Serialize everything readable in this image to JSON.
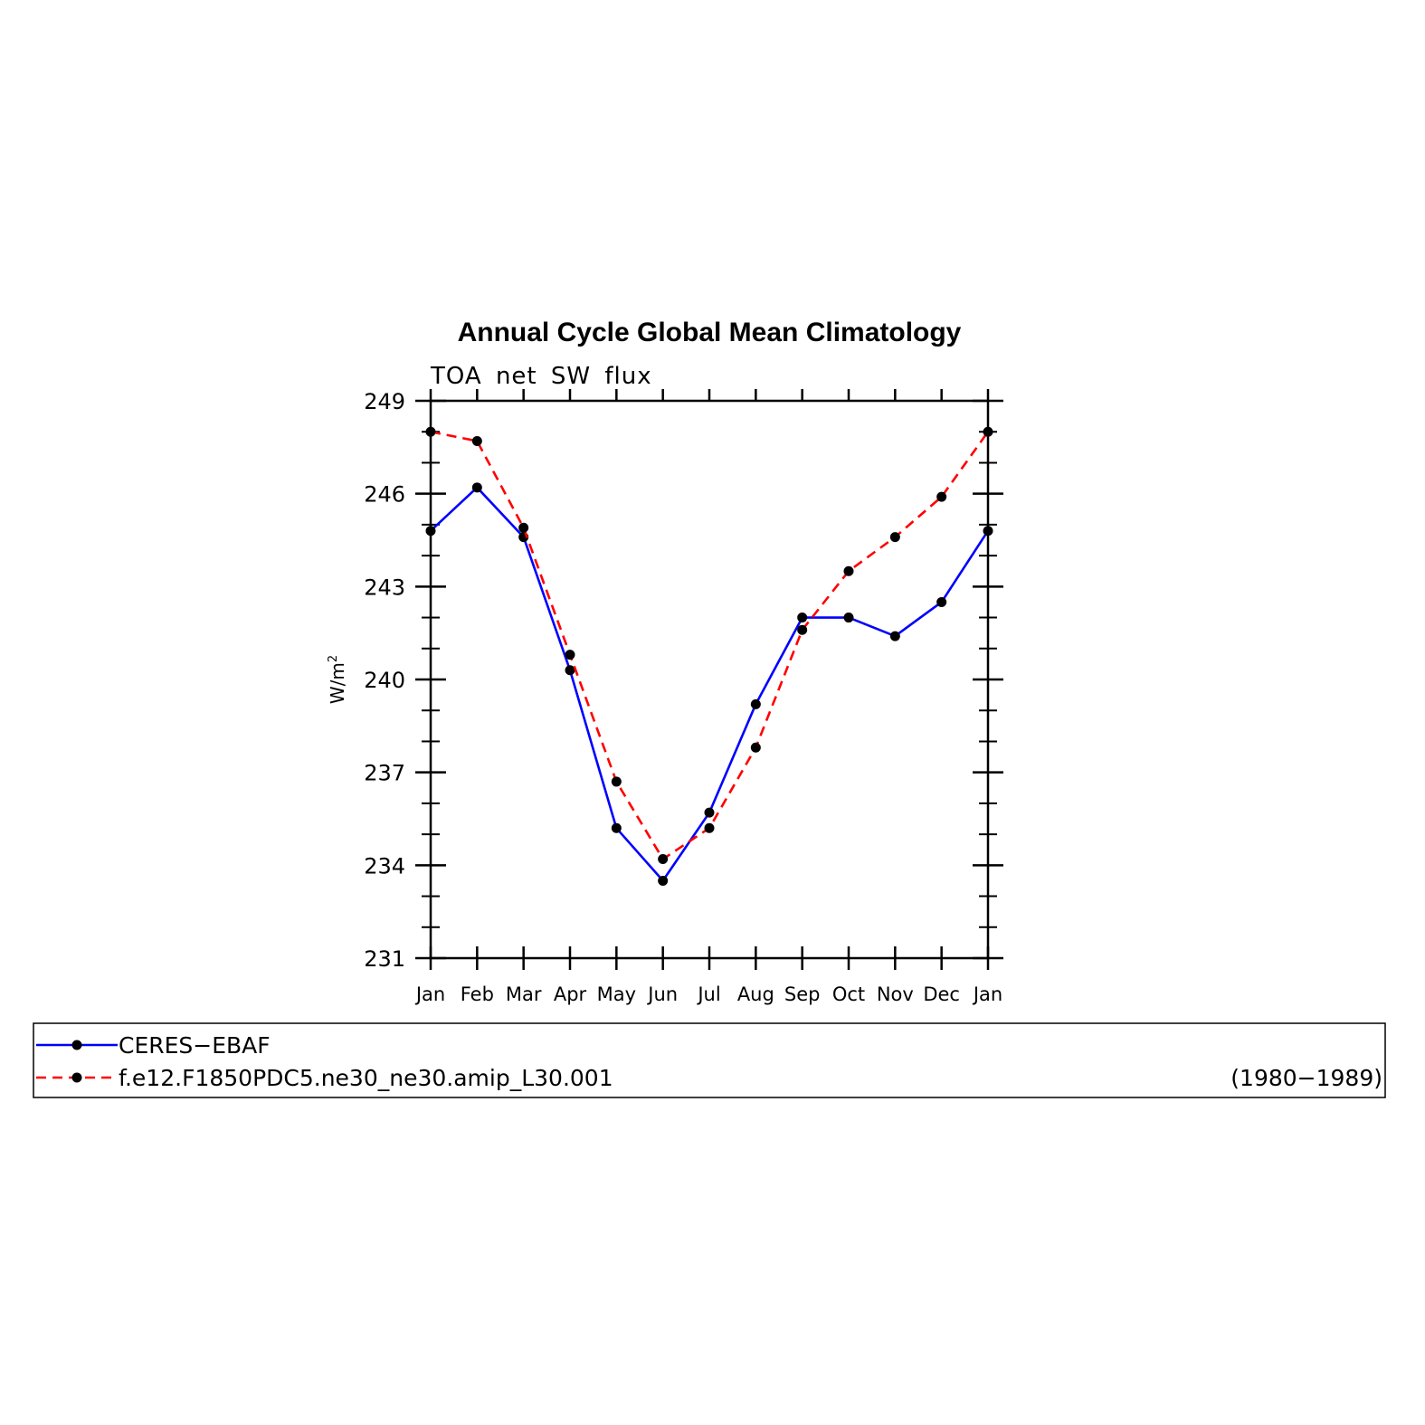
{
  "chart_data": {
    "type": "line",
    "title": "Annual Cycle Global Mean Climatology",
    "subtitle": "TOA net SW flux",
    "ylabel_main": "W/m",
    "ylabel_sup": "2",
    "xlabel": "",
    "categories": [
      "Jan",
      "Feb",
      "Mar",
      "Apr",
      "May",
      "Jun",
      "Jul",
      "Aug",
      "Sep",
      "Oct",
      "Nov",
      "Dec",
      "Jan"
    ],
    "ylim": [
      231,
      249
    ],
    "yticks": [
      249,
      246,
      243,
      240,
      237,
      234,
      231
    ],
    "grid": false,
    "legend_placement": "bottom",
    "series": [
      {
        "name": "CERES−EBAF",
        "color": "#0000ff",
        "line_style": "solid",
        "marker": "filled-circle",
        "values": [
          244.8,
          246.2,
          244.6,
          240.3,
          235.2,
          233.5,
          235.7,
          239.2,
          242.0,
          242.0,
          241.4,
          242.5,
          244.8
        ]
      },
      {
        "name": "f.e12.F1850PDC5.ne30_ne30.amip_L30.001",
        "color": "#ff0000",
        "line_style": "dashed",
        "marker": "filled-circle",
        "values": [
          248.0,
          247.7,
          244.9,
          240.8,
          236.7,
          234.2,
          235.2,
          237.8,
          241.6,
          243.5,
          244.6,
          245.9,
          248.0
        ]
      }
    ],
    "legend_note": "(1980−1989)"
  }
}
